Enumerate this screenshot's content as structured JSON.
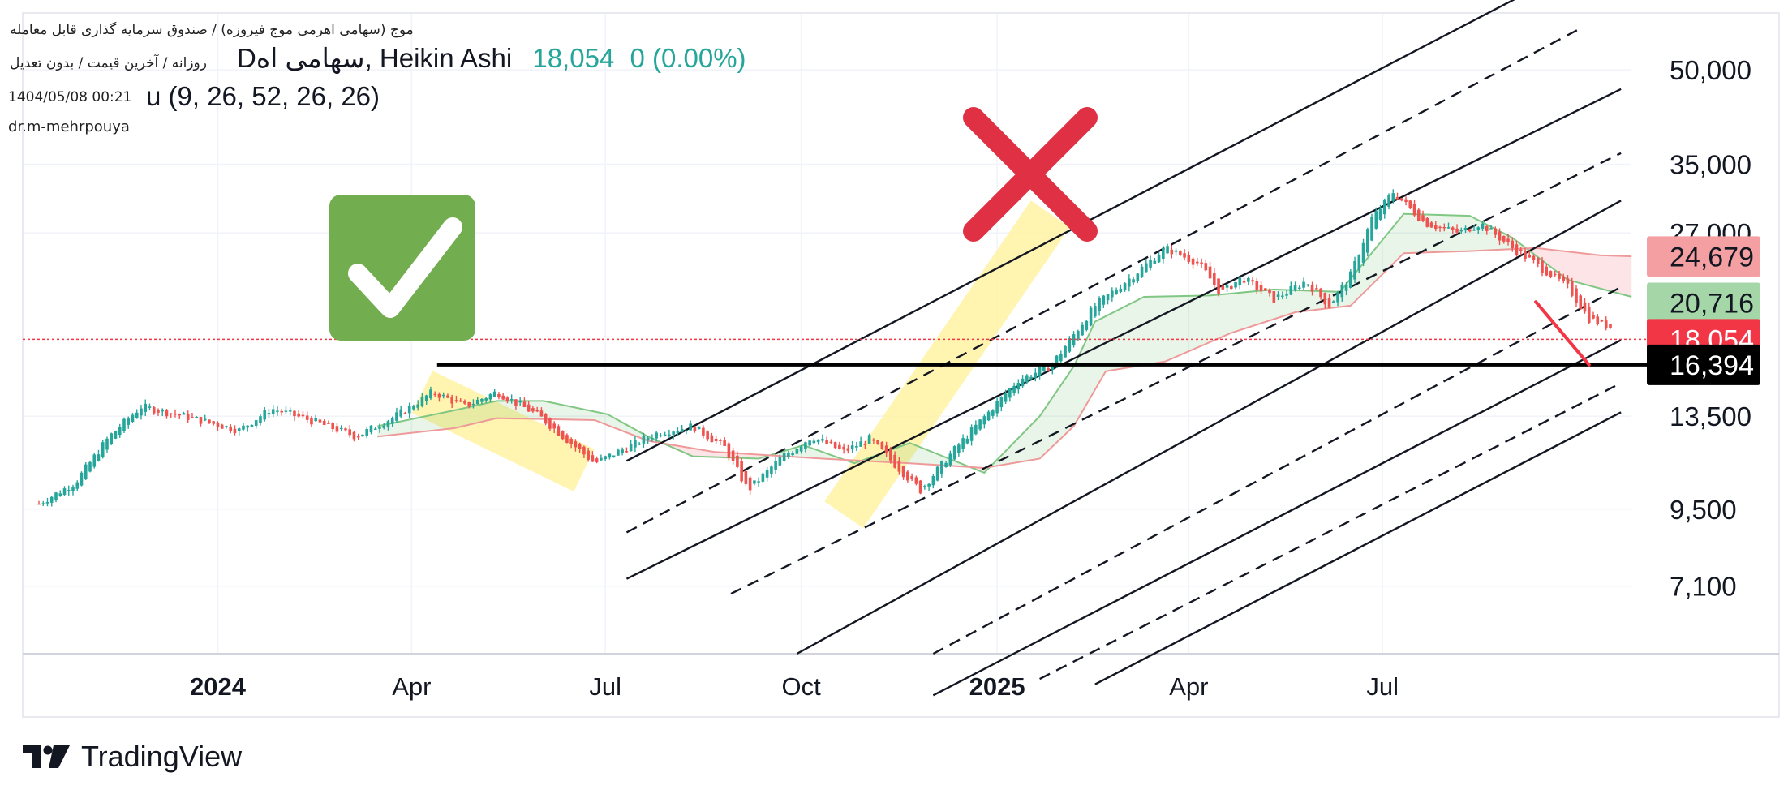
{
  "header": {
    "line1": "موج (سهامی اهرمی موج فیروزه) / صندوق سرمایه گذاری قابل معامله",
    "line2": "روزانه / آخرین قیمت / بدون تعدیل",
    "symbol": "Dسهامی اه, Heikin Ashi",
    "price": "18,054",
    "change": "0 (0.00%)",
    "date": "1404/05/08 00:21",
    "indicator": "u (9, 26, 52, 26, 26)",
    "author": "dr.m-mehrpouya"
  },
  "brand": {
    "name": "TradingView"
  },
  "colors": {
    "up": "#26a69a",
    "down": "#ef5350",
    "check_bg": "#72ad4f",
    "cross": "#e03144",
    "highlight": "#fff3a8"
  },
  "chart_data": {
    "type": "candlestick",
    "style": "Heikin Ashi",
    "scale": "log",
    "ylim": [
      5500,
      62000
    ],
    "y_ticks": [
      {
        "label": "50,000",
        "value": 50000
      },
      {
        "label": "35,000",
        "value": 35000
      },
      {
        "label": "27,000",
        "value": 27000
      },
      {
        "label": "13,500",
        "value": 13500
      },
      {
        "label": "9,500",
        "value": 9500
      },
      {
        "label": "7,100",
        "value": 7100
      }
    ],
    "x_ticks": [
      {
        "label": "2024",
        "date": "2023-12-31",
        "bold": true
      },
      {
        "label": "Apr",
        "date": "2024-03-31",
        "bold": false
      },
      {
        "label": "Jul",
        "date": "2024-06-30",
        "bold": false
      },
      {
        "label": "Oct",
        "date": "2024-09-30",
        "bold": false
      },
      {
        "label": "2025",
        "date": "2024-12-31",
        "bold": true
      },
      {
        "label": "Apr",
        "date": "2025-03-31",
        "bold": false
      },
      {
        "label": "Jul",
        "date": "2025-06-30",
        "bold": false
      }
    ],
    "x_start": "2023-10-08",
    "x_end": "2025-10-15",
    "price_path": [
      [
        "2023-10-08",
        9700
      ],
      [
        "2023-10-25",
        10500
      ],
      [
        "2023-11-10",
        12500
      ],
      [
        "2023-11-25",
        14000
      ],
      [
        "2023-12-15",
        13500
      ],
      [
        "2024-01-10",
        12800
      ],
      [
        "2024-01-25",
        13900
      ],
      [
        "2024-02-15",
        13200
      ],
      [
        "2024-03-05",
        12500
      ],
      [
        "2024-03-25",
        13600
      ],
      [
        "2024-04-10",
        14800
      ],
      [
        "2024-04-25",
        14000
      ],
      [
        "2024-05-10",
        14800
      ],
      [
        "2024-05-30",
        13500
      ],
      [
        "2024-06-25",
        11300
      ],
      [
        "2024-07-10",
        12000
      ],
      [
        "2024-07-25",
        12700
      ],
      [
        "2024-08-10",
        13000
      ],
      [
        "2024-08-25",
        12000
      ],
      [
        "2024-09-05",
        10200
      ],
      [
        "2024-09-20",
        11500
      ],
      [
        "2024-10-05",
        12500
      ],
      [
        "2024-10-20",
        11800
      ],
      [
        "2024-11-01",
        12400
      ],
      [
        "2024-11-25",
        10200
      ],
      [
        "2024-12-10",
        11800
      ],
      [
        "2025-01-10",
        15500
      ],
      [
        "2025-01-25",
        16300
      ],
      [
        "2025-02-15",
        20500
      ],
      [
        "2025-03-05",
        23000
      ],
      [
        "2025-03-20",
        25500
      ],
      [
        "2025-04-05",
        24000
      ],
      [
        "2025-04-15",
        21500
      ],
      [
        "2025-04-25",
        22800
      ],
      [
        "2025-05-10",
        21000
      ],
      [
        "2025-05-25",
        22500
      ],
      [
        "2025-06-05",
        20500
      ],
      [
        "2025-06-15",
        23000
      ],
      [
        "2025-06-25",
        28500
      ],
      [
        "2025-07-05",
        31500
      ],
      [
        "2025-07-20",
        28000
      ],
      [
        "2025-08-05",
        27000
      ],
      [
        "2025-08-15",
        28000
      ],
      [
        "2025-08-30",
        25500
      ],
      [
        "2025-09-10",
        24000
      ],
      [
        "2025-09-25",
        22000
      ],
      [
        "2025-10-05",
        19500
      ],
      [
        "2025-10-15",
        18900
      ]
    ],
    "last_price": 18054,
    "price_badges": [
      {
        "label": "24,679",
        "value": 24679,
        "bg": "#f4a0a3",
        "fg": "#131722"
      },
      {
        "label": "20,716",
        "value": 20716,
        "bg": "#a5d6a7",
        "fg": "#131722"
      },
      {
        "label": "18,054",
        "value": 18054,
        "bg": "#f23645",
        "fg": "#ffffff"
      },
      {
        "label": "16,394",
        "value": 16394,
        "bg": "#000000",
        "fg": "#ffffff"
      }
    ],
    "support_level": 16394,
    "ichimoku": {
      "params": [
        9,
        26,
        52,
        26,
        26
      ],
      "span_a": [
        [
          "2024-03-15",
          13000
        ],
        [
          "2024-04-20",
          13800
        ],
        [
          "2024-05-10",
          14300
        ],
        [
          "2024-06-01",
          14300
        ],
        [
          "2024-07-01",
          13600
        ],
        [
          "2024-07-20",
          12500
        ],
        [
          "2024-08-10",
          11600
        ],
        [
          "2024-09-10",
          11500
        ],
        [
          "2024-10-01",
          12100
        ],
        [
          "2024-10-25",
          11300
        ],
        [
          "2024-11-20",
          12200
        ],
        [
          "2024-12-25",
          10900
        ],
        [
          "2025-01-20",
          13500
        ],
        [
          "2025-02-05",
          16300
        ],
        [
          "2025-02-15",
          19300
        ],
        [
          "2025-03-10",
          21200
        ],
        [
          "2025-04-10",
          21300
        ],
        [
          "2025-05-10",
          21800
        ],
        [
          "2025-06-10",
          21600
        ],
        [
          "2025-07-10",
          29000
        ],
        [
          "2025-08-10",
          28800
        ],
        [
          "2025-08-30",
          26500
        ],
        [
          "2025-09-25",
          22600
        ],
        [
          "2025-10-25",
          21200
        ]
      ],
      "span_b": [
        [
          "2024-03-15",
          12500
        ],
        [
          "2024-04-20",
          12900
        ],
        [
          "2024-05-10",
          13400
        ],
        [
          "2024-06-25",
          13300
        ],
        [
          "2024-07-20",
          12300
        ],
        [
          "2024-08-20",
          11800
        ],
        [
          "2024-10-10",
          11500
        ],
        [
          "2024-11-20",
          11300
        ],
        [
          "2024-12-25",
          11100
        ],
        [
          "2025-01-20",
          11500
        ],
        [
          "2025-02-05",
          13000
        ],
        [
          "2025-02-20",
          16000
        ],
        [
          "2025-03-20",
          16600
        ],
        [
          "2025-04-20",
          18500
        ],
        [
          "2025-05-20",
          20000
        ],
        [
          "2025-06-15",
          20500
        ],
        [
          "2025-07-10",
          25000
        ],
        [
          "2025-08-10",
          25200
        ],
        [
          "2025-09-10",
          25500
        ],
        [
          "2025-10-10",
          24800
        ],
        [
          "2025-10-25",
          24700
        ]
      ]
    },
    "channel_lines": [
      {
        "dashed": false,
        "start": [
          "2024-07-10",
          11400
        ],
        "end": [
          "2025-09-20",
          71000
        ]
      },
      {
        "dashed": true,
        "start": [
          "2024-07-10",
          8700
        ],
        "end": [
          "2025-10-01",
          58500
        ]
      },
      {
        "dashed": false,
        "start": [
          "2024-07-10",
          7300
        ],
        "end": [
          "2025-10-20",
          46500
        ]
      },
      {
        "dashed": true,
        "start": [
          "2024-08-28",
          6900
        ],
        "end": [
          "2025-10-20",
          36500
        ]
      },
      {
        "dashed": false,
        "start": [
          "2024-09-28",
          5500
        ],
        "end": [
          "2025-10-20",
          30500
        ]
      },
      {
        "dashed": true,
        "start": [
          "2024-12-01",
          5500
        ],
        "end": [
          "2025-10-20",
          22000
        ]
      },
      {
        "dashed": false,
        "start": [
          "2024-12-01",
          4700
        ],
        "end": [
          "2025-10-20",
          18000
        ]
      },
      {
        "dashed": true,
        "start": [
          "2025-01-20",
          5000
        ],
        "end": [
          "2025-10-20",
          15300
        ]
      },
      {
        "dashed": false,
        "start": [
          "2025-02-15",
          4900
        ],
        "end": [
          "2025-10-20",
          13700
        ]
      }
    ],
    "highlight_bands": [
      {
        "start": [
          "2024-04-05",
          14800
        ],
        "end": [
          "2024-06-20",
          11000
        ]
      },
      {
        "start": [
          "2024-10-20",
          9300
        ],
        "end": [
          "2025-01-25",
          29000
        ]
      }
    ],
    "sell_arrow": {
      "start": [
        "2025-09-10",
        20800
      ],
      "end": [
        "2025-10-05",
        16394
      ]
    }
  }
}
